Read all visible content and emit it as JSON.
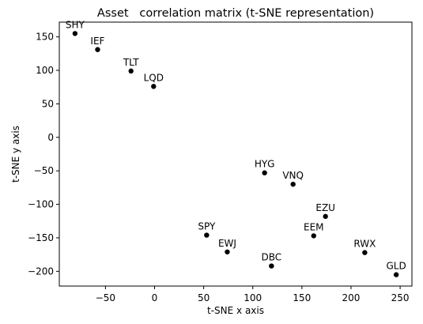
{
  "chart_data": {
    "type": "scatter",
    "title": "Asset   correlation matrix (t-SNE representation)",
    "xlabel": "t-SNE x axis",
    "ylabel": "t-SNE y axis",
    "xlim": [
      -97,
      262
    ],
    "ylim": [
      -222,
      172
    ],
    "xticks": [
      -50,
      0,
      50,
      100,
      150,
      200,
      250
    ],
    "yticks": [
      150,
      100,
      50,
      0,
      -50,
      -100,
      -150,
      -200
    ],
    "xtick_labels": [
      "−50",
      "0",
      "50",
      "100",
      "150",
      "200",
      "250"
    ],
    "ytick_labels": [
      "150",
      "100",
      "50",
      "0",
      "−50",
      "−100",
      "−150",
      "−200"
    ],
    "grid": false,
    "marker_color": "#000000",
    "points": [
      {
        "label": "SHY",
        "x": -81,
        "y": 155
      },
      {
        "label": "IEF",
        "x": -58,
        "y": 131
      },
      {
        "label": "TLT",
        "x": -24,
        "y": 99
      },
      {
        "label": "LQD",
        "x": -1,
        "y": 76
      },
      {
        "label": "HYG",
        "x": 112,
        "y": -53
      },
      {
        "label": "VNQ",
        "x": 141,
        "y": -70
      },
      {
        "label": "EZU",
        "x": 174,
        "y": -118
      },
      {
        "label": "EEM",
        "x": 162,
        "y": -147
      },
      {
        "label": "SPY",
        "x": 53,
        "y": -146
      },
      {
        "label": "EWJ",
        "x": 74,
        "y": -171
      },
      {
        "label": "DBC",
        "x": 119,
        "y": -192
      },
      {
        "label": "RWX",
        "x": 214,
        "y": -172
      },
      {
        "label": "GLD",
        "x": 246,
        "y": -205
      }
    ]
  }
}
